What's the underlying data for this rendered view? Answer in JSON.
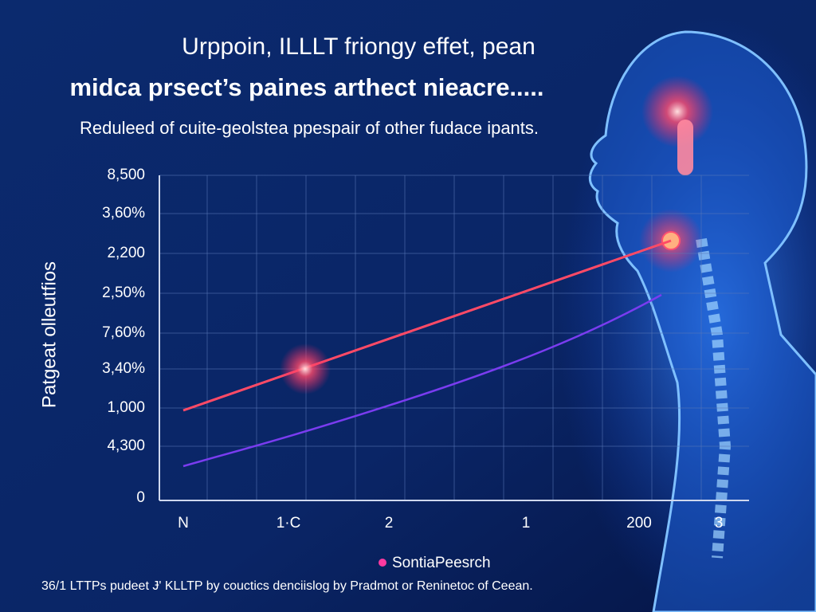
{
  "header": {
    "title_line_1": "Urppoin, ILLLT friongy effet, pean",
    "title_line_2": "midca prsect’s paines arthect nieacre.....",
    "subtitle": "Reduleed of cuite-geolstea ppespair of other fudace ipants."
  },
  "axis": {
    "y_label": "Patgeat olleutfios",
    "y_ticks": [
      "8,500",
      "3,60%",
      "2,200",
      "2,50%",
      "7,60%",
      "3,40%",
      "1,000",
      "4,300",
      "0"
    ],
    "x_ticks": [
      "N",
      "1·C",
      "2",
      "1",
      "200",
      "3"
    ]
  },
  "legend": {
    "label": "SontiaPeesrch"
  },
  "footnote": "36/1 LTTPs pudeet Ɉ' KLLTP by couctics denciislog by Pradmot or Reninetoc of Ceean."
}
